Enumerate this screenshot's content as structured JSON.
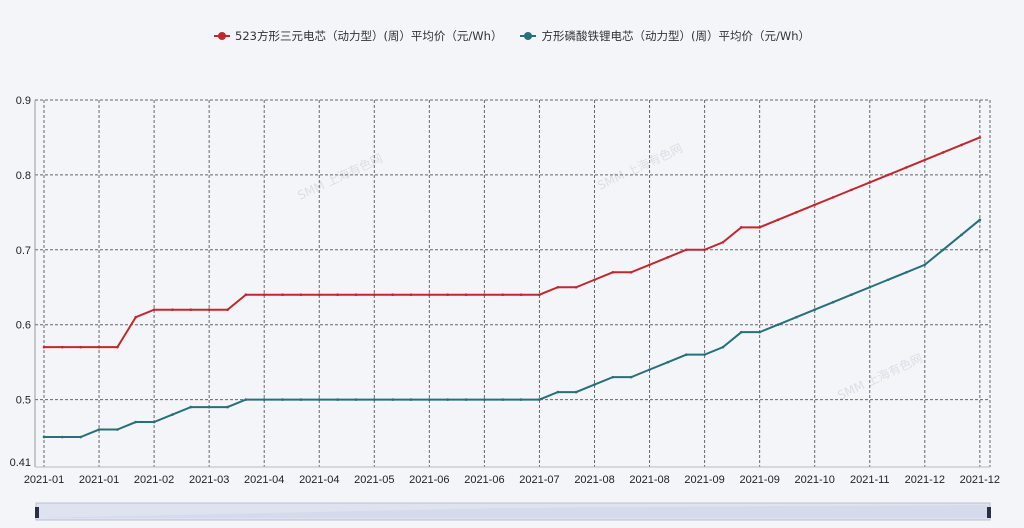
{
  "watermark": "SMM 上海有色网",
  "chart_data": {
    "type": "line",
    "title": "",
    "xlabel": "",
    "ylabel": "",
    "ylim": [
      0.41,
      0.9
    ],
    "yticks": [
      "0.41",
      "0.5",
      "0.6",
      "0.7",
      "0.8",
      "0.9"
    ],
    "grid": true,
    "legend_position": "top",
    "x_tick_labels": [
      "2021-01",
      "2021-01",
      "2021-02",
      "2021-03",
      "2021-04",
      "2021-04",
      "2021-05",
      "2021-06",
      "2021-06",
      "2021-07",
      "2021-08",
      "2021-08",
      "2021-09",
      "2021-09",
      "2021-10",
      "2021-11",
      "2021-12",
      "2021-12"
    ],
    "x_points_per_tick": 3,
    "series": [
      {
        "name": "523方形三元电芯（动力型）(周）平均价（元/Wh）",
        "color": "#c0282f",
        "values": [
          0.57,
          0.57,
          0.57,
          0.57,
          0.57,
          0.61,
          0.62,
          0.62,
          0.62,
          0.62,
          0.62,
          0.64,
          0.64,
          0.64,
          0.64,
          0.64,
          0.64,
          0.64,
          0.64,
          0.64,
          0.64,
          0.64,
          0.64,
          0.64,
          0.64,
          0.64,
          0.64,
          0.64,
          0.65,
          0.65,
          0.66,
          0.67,
          0.67,
          0.68,
          0.69,
          0.7,
          0.7,
          0.71,
          0.73,
          0.73,
          0.74,
          0.75,
          0.76,
          0.77,
          0.78,
          0.79,
          0.8,
          0.81,
          0.82,
          0.83,
          0.84,
          0.85
        ]
      },
      {
        "name": "方形磷酸铁锂电芯（动力型）(周）平均价（元/Wh）",
        "color": "#26707a",
        "values": [
          0.45,
          0.45,
          0.45,
          0.46,
          0.46,
          0.47,
          0.47,
          0.48,
          0.49,
          0.49,
          0.49,
          0.5,
          0.5,
          0.5,
          0.5,
          0.5,
          0.5,
          0.5,
          0.5,
          0.5,
          0.5,
          0.5,
          0.5,
          0.5,
          0.5,
          0.5,
          0.5,
          0.5,
          0.51,
          0.51,
          0.52,
          0.53,
          0.53,
          0.54,
          0.55,
          0.56,
          0.56,
          0.57,
          0.59,
          0.59,
          0.6,
          0.61,
          0.62,
          0.63,
          0.64,
          0.65,
          0.66,
          0.67,
          0.68,
          0.7,
          0.72,
          0.74
        ]
      }
    ]
  }
}
